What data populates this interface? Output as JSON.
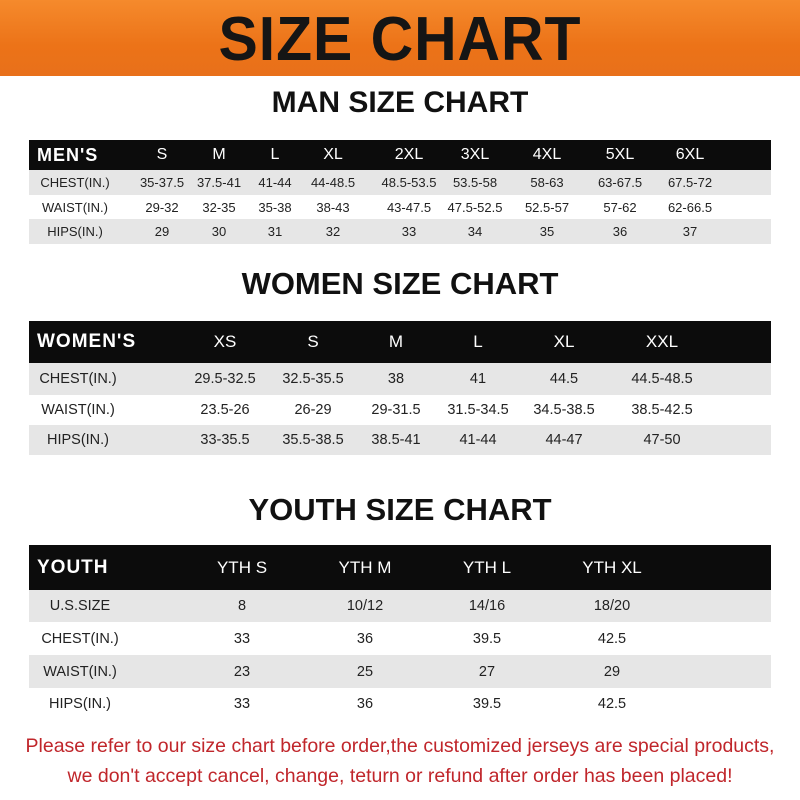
{
  "title": "SIZE CHART",
  "colors": {
    "banner": "#ec7318",
    "header_row": "#0c0c0c",
    "stripe": "#e6e6e6",
    "notice": "#c0262b"
  },
  "men": {
    "title": "MAN SIZE CHART",
    "columns": [
      "MEN'S",
      "S",
      "M",
      "L",
      "XL",
      "2XL",
      "3XL",
      "4XL",
      "5XL",
      "6XL"
    ],
    "rows": [
      [
        "CHEST(IN.)",
        "35-37.5",
        "37.5-41",
        "41-44",
        "44-48.5",
        "48.5-53.5",
        "53.5-58",
        "58-63",
        "63-67.5",
        "67.5-72"
      ],
      [
        "WAIST(IN.)",
        "29-32",
        "32-35",
        "35-38",
        "38-43",
        "43-47.5",
        "47.5-52.5",
        "52.5-57",
        "57-62",
        "62-66.5"
      ],
      [
        "HIPS(IN.)",
        "29",
        "30",
        "31",
        "32",
        "33",
        "34",
        "35",
        "36",
        "37"
      ]
    ]
  },
  "women": {
    "title": "WOMEN SIZE CHART",
    "columns": [
      "WOMEN'S",
      "XS",
      "S",
      "M",
      "L",
      "XL",
      "XXL"
    ],
    "rows": [
      [
        "CHEST(IN.)",
        "29.5-32.5",
        "32.5-35.5",
        "38",
        "41",
        "44.5",
        "44.5-48.5"
      ],
      [
        "WAIST(IN.)",
        "23.5-26",
        "26-29",
        "29-31.5",
        "31.5-34.5",
        "34.5-38.5",
        "38.5-42.5"
      ],
      [
        "HIPS(IN.)",
        "33-35.5",
        "35.5-38.5",
        "38.5-41",
        "41-44",
        "44-47",
        "47-50"
      ]
    ]
  },
  "youth": {
    "title": "YOUTH SIZE CHART",
    "columns": [
      "YOUTH",
      "YTH S",
      "YTH M",
      "YTH L",
      "YTH XL"
    ],
    "rows": [
      [
        "U.S.SIZE",
        "8",
        "10/12",
        "14/16",
        "18/20"
      ],
      [
        "CHEST(IN.)",
        "33",
        "36",
        "39.5",
        "42.5"
      ],
      [
        "WAIST(IN.)",
        "23",
        "25",
        "27",
        "29"
      ],
      [
        "HIPS(IN.)",
        "33",
        "36",
        "39.5",
        "42.5"
      ]
    ]
  },
  "notice": {
    "line1": "Please refer to our size chart before order,the customized jerseys are special products,",
    "line2": "we don't accept cancel, change, teturn or refund after order has been placed!"
  }
}
